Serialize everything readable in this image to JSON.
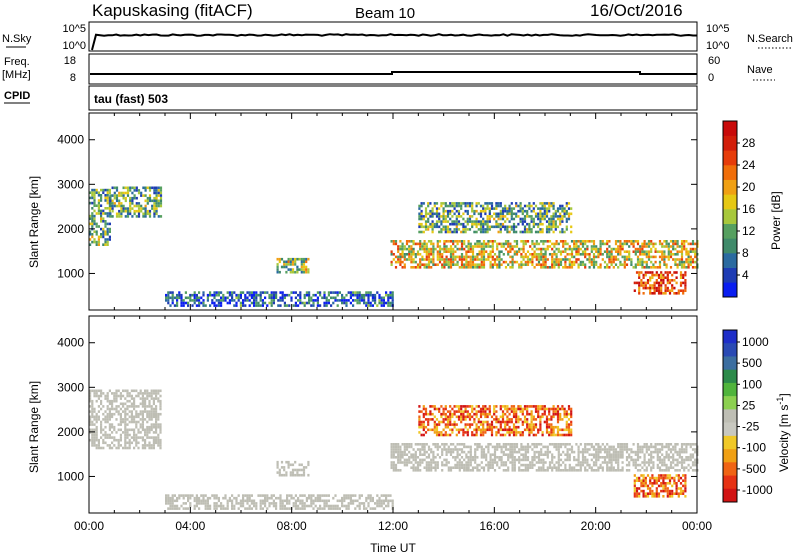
{
  "header": {
    "station": "Kapuskasing (fitACF)",
    "beam": "Beam 10",
    "date": "16/Oct/2016"
  },
  "strip_noise": {
    "left_label": "N.Sky",
    "right_label": "N.Search",
    "left_ticks": [
      "10^5",
      "10^0"
    ],
    "right_ticks": [
      "10^5",
      "10^0"
    ]
  },
  "strip_freq": {
    "left_label_1": "Freq.",
    "left_label_2": "[MHz]",
    "left_ticks": [
      "18",
      "8"
    ],
    "right_ticks": [
      "60",
      "0"
    ],
    "right_label": "Nave"
  },
  "cpid": {
    "label": "CPID",
    "value": "tau (fast) 503"
  },
  "colors": {
    "power_scale": [
      "#0a1ef0",
      "#1e3cb4",
      "#2a6aa0",
      "#3f8a6a",
      "#56a060",
      "#a8c83c",
      "#e6c814",
      "#f0a014",
      "#f06e0a",
      "#e63c0a",
      "#d21e0a",
      "#c80a0a"
    ],
    "velocity_scale": [
      "#1e2ec8",
      "#2a4ab4",
      "#3c6ea0",
      "#2c8a4a",
      "#50b43c",
      "#8cd050",
      "#bebeb4",
      "#c8c8c0",
      "#f0c828",
      "#f0a014",
      "#f06414",
      "#e63214",
      "#d21414"
    ],
    "ground_scatter": "#bebeb4"
  },
  "chart_data": [
    {
      "type": "heatmap",
      "name": "power-panel",
      "ylabel": "Slant Range [km]",
      "yticks": [
        "4000",
        "3000",
        "2000",
        "1000"
      ],
      "ylim_km": [
        180,
        4600
      ],
      "xlim_hours": [
        0,
        24
      ],
      "colorbar": {
        "title": "Power [dB]",
        "ticks": [
          "28",
          "24",
          "20",
          "16",
          "12",
          "8",
          "4"
        ],
        "range": [
          0,
          32
        ]
      },
      "regions": [
        {
          "t0": 0.0,
          "t1": 0.8,
          "r0": 1650,
          "r1": 2900,
          "level": 0.35
        },
        {
          "t0": 0.8,
          "t1": 2.8,
          "r0": 2300,
          "r1": 2950,
          "level": 0.35
        },
        {
          "t0": 3.0,
          "t1": 12.0,
          "r0": 250,
          "r1": 600,
          "level": 0.18
        },
        {
          "t0": 7.4,
          "t1": 8.7,
          "r0": 1000,
          "r1": 1350,
          "level": 0.45
        },
        {
          "t0": 11.9,
          "t1": 24.0,
          "r0": 1150,
          "r1": 1750,
          "level": 0.55
        },
        {
          "t0": 13.0,
          "t1": 19.0,
          "r0": 1900,
          "r1": 2600,
          "level": 0.35
        },
        {
          "t0": 21.5,
          "t1": 23.5,
          "r0": 580,
          "r1": 1050,
          "level": 0.82
        }
      ]
    },
    {
      "type": "heatmap",
      "name": "velocity-panel",
      "ylabel": "Slant Range [km]",
      "yticks": [
        "4000",
        "3000",
        "2000",
        "1000"
      ],
      "ylim_km": [
        180,
        4600
      ],
      "xlim_hours": [
        0,
        24
      ],
      "xticks": [
        "00:00",
        "04:00",
        "08:00",
        "12:00",
        "16:00",
        "20:00",
        "00:00"
      ],
      "xlabel": "Time UT",
      "colorbar": {
        "title": "Velocity [m s",
        "title_sup": "-1",
        "title_end": "]",
        "ticks": [
          "1000",
          "500",
          "100",
          "25",
          "-25",
          "-100",
          "-500",
          "-1000"
        ]
      },
      "regions": [
        {
          "t0": 0.0,
          "t1": 2.8,
          "r0": 1650,
          "r1": 2950,
          "velocity_class": "ground-scatter"
        },
        {
          "t0": 3.0,
          "t1": 12.0,
          "r0": 250,
          "r1": 600,
          "velocity_class": "ground-scatter"
        },
        {
          "t0": 7.4,
          "t1": 8.7,
          "r0": 1000,
          "r1": 1350,
          "velocity_class": "ground-scatter"
        },
        {
          "t0": 11.9,
          "t1": 24.0,
          "r0": 1150,
          "r1": 1750,
          "velocity_class": "ground-scatter"
        },
        {
          "t0": 13.0,
          "t1": 19.0,
          "r0": 1900,
          "r1": 2600,
          "velocity_class": "negative"
        },
        {
          "t0": 21.5,
          "t1": 23.5,
          "r0": 580,
          "r1": 1050,
          "velocity_class": "negative"
        }
      ]
    }
  ]
}
